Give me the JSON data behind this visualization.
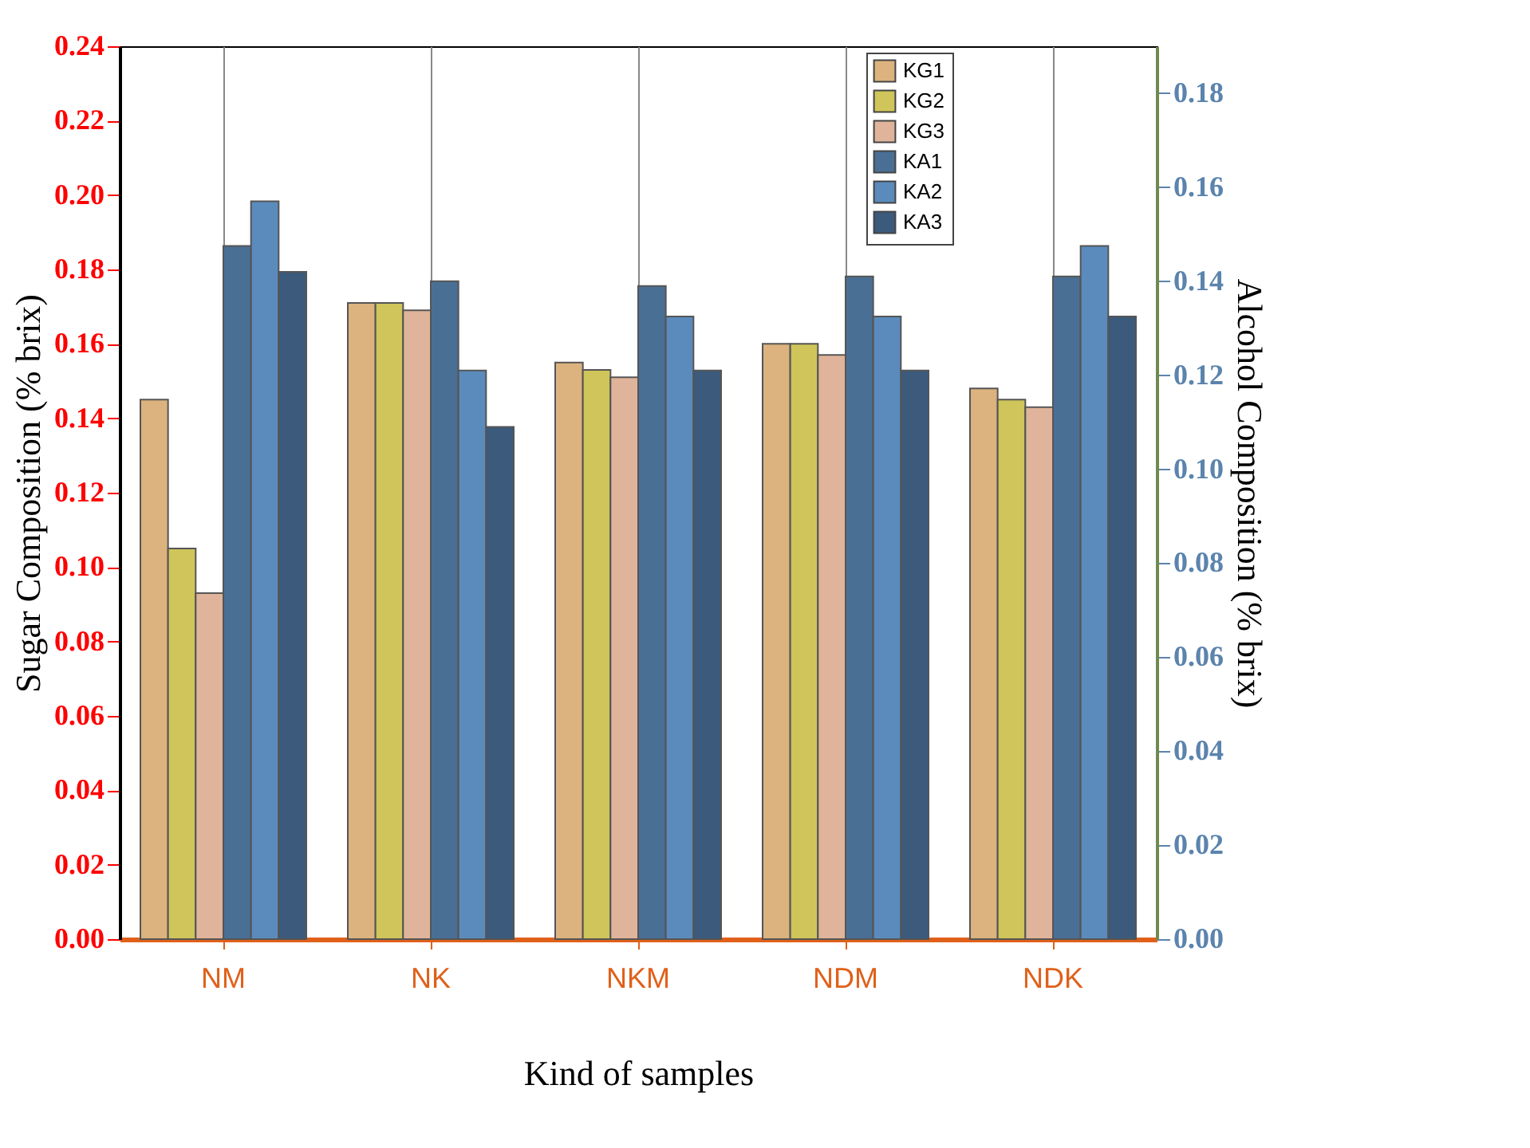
{
  "chart_data": {
    "type": "bar",
    "xlabel": "Kind of samples",
    "ylabel": "Sugar Composition (% brix)",
    "y2label": "Alcohol Composition (% brix)",
    "categories": [
      "NM",
      "NK",
      "NKM",
      "NDM",
      "NDK"
    ],
    "series": [
      {
        "name": "KG1",
        "color": "#dcb37e",
        "values": [
          0.145,
          0.171,
          0.155,
          0.16,
          0.148
        ]
      },
      {
        "name": "KG2",
        "color": "#cfc55a",
        "values": [
          0.105,
          0.171,
          0.153,
          0.16,
          0.145
        ]
      },
      {
        "name": "KG3",
        "color": "#e0b49a",
        "values": [
          0.093,
          0.169,
          0.151,
          0.157,
          0.143
        ]
      },
      {
        "name": "KA1",
        "color": "#4a6f95",
        "values": [
          0.1475,
          0.14,
          0.139,
          0.141,
          0.141
        ],
        "axis": "y2"
      },
      {
        "name": "KA2",
        "color": "#5b8bbd",
        "values": [
          0.157,
          0.121,
          0.1325,
          0.1325,
          0.1475
        ],
        "axis": "y2"
      },
      {
        "name": "KA3",
        "color": "#3b5a7c",
        "values": [
          0.142,
          0.109,
          0.121,
          0.121,
          0.1325
        ],
        "axis": "y2"
      }
    ],
    "ylim": [
      0,
      0.24
    ],
    "yticks": [
      {
        "value": 0,
        "label": "0.00"
      },
      {
        "value": 0.02,
        "label": "0.02"
      },
      {
        "value": 0.04,
        "label": "0.04"
      },
      {
        "value": 0.06,
        "label": "0.06"
      },
      {
        "value": 0.08,
        "label": "0.08"
      },
      {
        "value": 0.1,
        "label": "0.10"
      },
      {
        "value": 0.12,
        "label": "0.12"
      },
      {
        "value": 0.14,
        "label": "0.14"
      },
      {
        "value": 0.16,
        "label": "0.16"
      },
      {
        "value": 0.18,
        "label": "0.18"
      },
      {
        "value": 0.2,
        "label": "0.20"
      },
      {
        "value": 0.22,
        "label": "0.22"
      },
      {
        "value": 0.24,
        "label": "0.24"
      }
    ],
    "y2lim": [
      0,
      0.19
    ],
    "y2ticks": [
      {
        "value": 0,
        "label": "0.00"
      },
      {
        "value": 0.02,
        "label": "0.02"
      },
      {
        "value": 0.04,
        "label": "0.04"
      },
      {
        "value": 0.06,
        "label": "0.06"
      },
      {
        "value": 0.08,
        "label": "0.08"
      },
      {
        "value": 0.1,
        "label": "0.10"
      },
      {
        "value": 0.12,
        "label": "0.12"
      },
      {
        "value": 0.14,
        "label": "0.14"
      },
      {
        "value": 0.16,
        "label": "0.16"
      },
      {
        "value": 0.18,
        "label": "0.18"
      }
    ],
    "grid": "x",
    "legend": "top right"
  }
}
